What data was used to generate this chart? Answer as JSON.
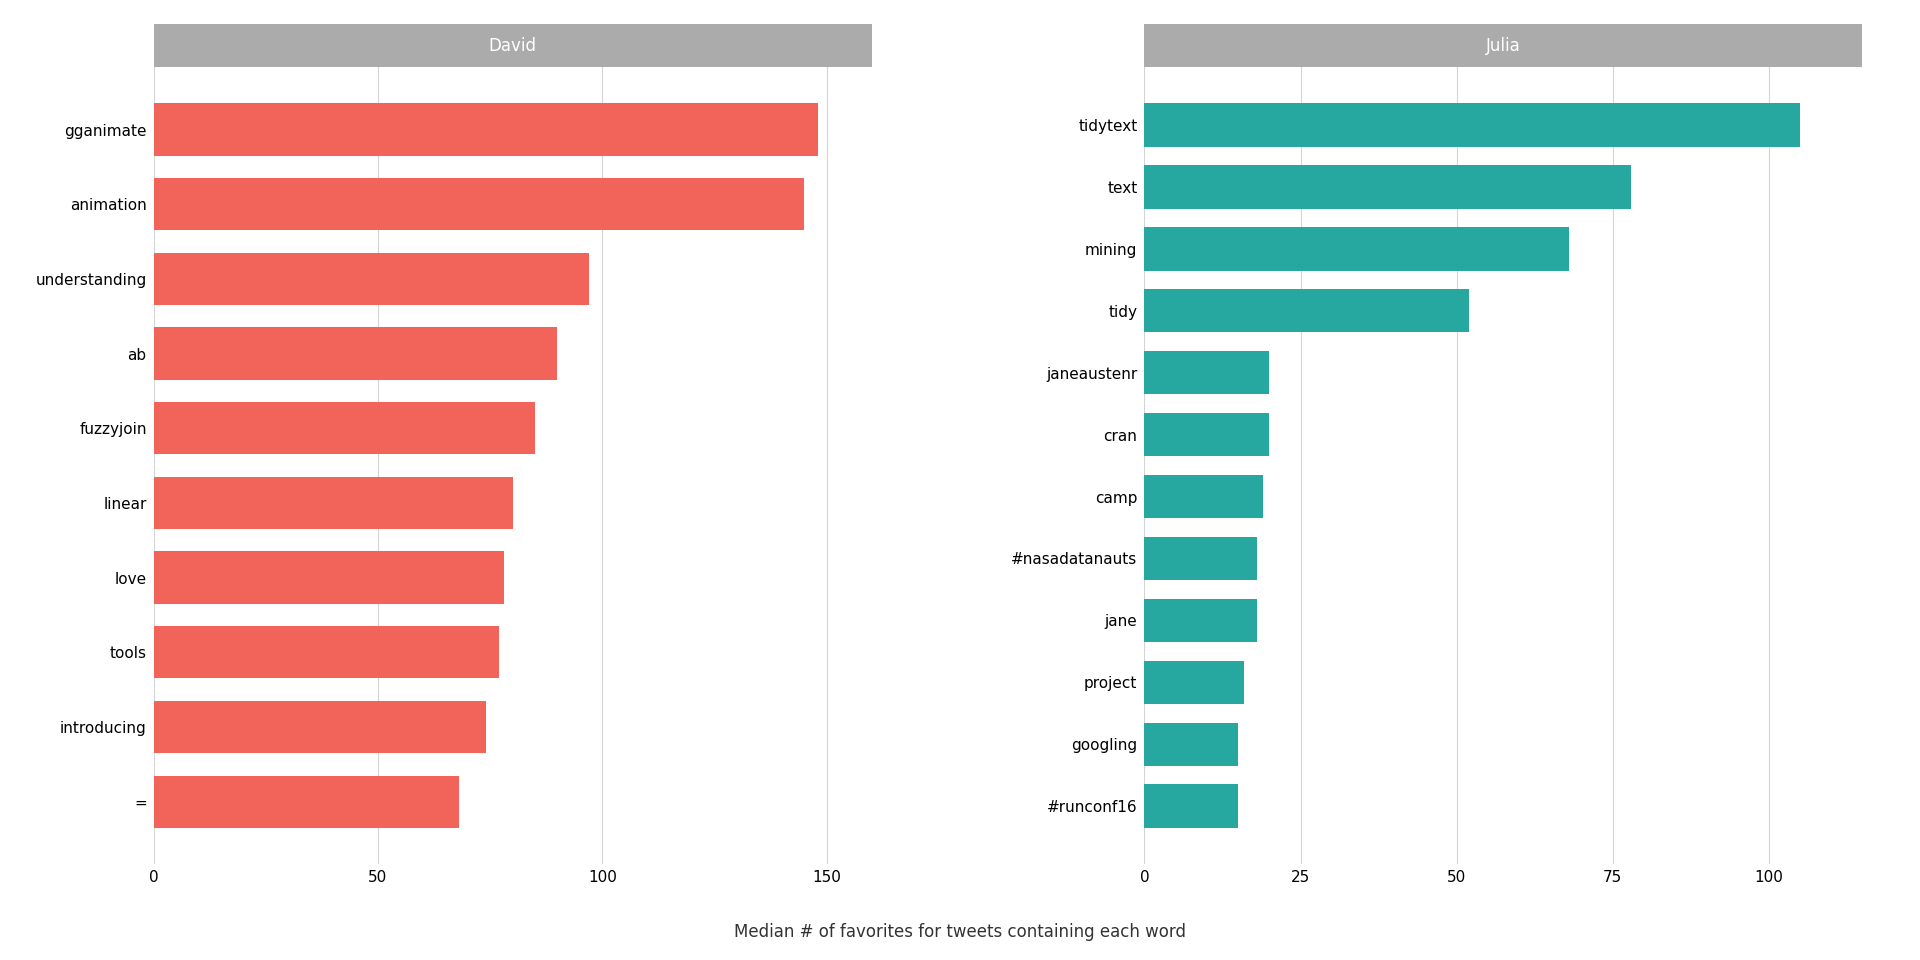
{
  "david": {
    "words": [
      "gganimate",
      "animation",
      "understanding",
      "ab",
      "fuzzyjoin",
      "linear",
      "love",
      "tools",
      "introducing",
      "="
    ],
    "values": [
      148,
      145,
      97,
      90,
      85,
      80,
      78,
      77,
      74,
      68
    ],
    "color": "#F2645A",
    "title": "David",
    "xlim": [
      0,
      160
    ],
    "xticks": [
      0,
      50,
      100,
      150
    ]
  },
  "julia": {
    "words": [
      "tidytext",
      "text",
      "mining",
      "tidy",
      "janeaustenr",
      "cran",
      "camp",
      "#nasadatanauts",
      "jane",
      "project",
      "googling",
      "#runconf16"
    ],
    "values": [
      105,
      78,
      68,
      52,
      20,
      20,
      19,
      18,
      18,
      16,
      15,
      15
    ],
    "color": "#26A8A0",
    "title": "Julia",
    "xlim": [
      0,
      115
    ],
    "xticks": [
      0,
      25,
      50,
      75,
      100
    ]
  },
  "xlabel": "Median # of favorites for tweets containing each word",
  "strip_bg_color": "#ABABAB",
  "strip_text_color": "#FFFFFF",
  "plot_bg_color": "#FFFFFF",
  "fig_bg_color": "#FFFFFF",
  "grid_color": "#D4D4D4",
  "bar_height": 0.7,
  "title_fontsize": 12,
  "axis_fontsize": 11,
  "label_fontsize": 11,
  "xlabel_fontsize": 12
}
